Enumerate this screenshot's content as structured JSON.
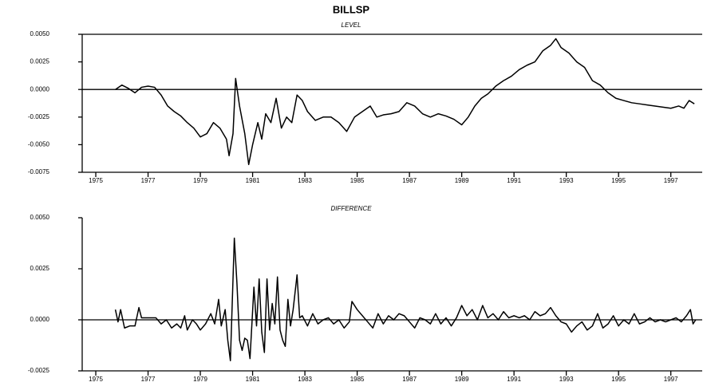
{
  "title": "BILLSP",
  "chart_data": [
    {
      "type": "line",
      "title": "LEVEL",
      "x": [
        1975.75,
        1976.0,
        1976.25,
        1976.5,
        1976.75,
        1977.0,
        1977.25,
        1977.5,
        1977.75,
        1978.0,
        1978.25,
        1978.5,
        1978.75,
        1979.0,
        1979.25,
        1979.5,
        1979.75,
        1980.0,
        1980.1,
        1980.25,
        1980.35,
        1980.5,
        1980.7,
        1980.85,
        1981.0,
        1981.2,
        1981.35,
        1981.5,
        1981.7,
        1981.9,
        1982.1,
        1982.3,
        1982.5,
        1982.7,
        1982.9,
        1983.1,
        1983.4,
        1983.7,
        1984.0,
        1984.3,
        1984.6,
        1984.9,
        1985.2,
        1985.5,
        1985.75,
        1986.0,
        1986.3,
        1986.6,
        1986.9,
        1987.2,
        1987.5,
        1987.8,
        1988.1,
        1988.4,
        1988.7,
        1989.0,
        1989.25,
        1989.5,
        1989.75,
        1990.0,
        1990.3,
        1990.6,
        1990.9,
        1991.2,
        1991.5,
        1991.8,
        1992.1,
        1992.4,
        1992.6,
        1992.8,
        1993.1,
        1993.4,
        1993.7,
        1994.0,
        1994.3,
        1994.6,
        1994.9,
        1995.2,
        1995.5,
        1995.8,
        1996.1,
        1996.4,
        1996.7,
        1997.0,
        1997.3,
        1997.5,
        1997.7,
        1997.9
      ],
      "values": [
        0,
        0.0004,
        0.0001,
        -0.0003,
        0.0002,
        0.0003,
        0.0002,
        -0.0005,
        -0.0015,
        -0.002,
        -0.0024,
        -0.003,
        -0.0035,
        -0.0043,
        -0.004,
        -0.003,
        -0.0035,
        -0.0045,
        -0.006,
        -0.004,
        0.001,
        -0.0015,
        -0.004,
        -0.0068,
        -0.005,
        -0.003,
        -0.0045,
        -0.0022,
        -0.003,
        -0.0008,
        -0.0035,
        -0.0025,
        -0.003,
        -0.0005,
        -0.001,
        -0.002,
        -0.0028,
        -0.0025,
        -0.0025,
        -0.003,
        -0.0038,
        -0.0025,
        -0.002,
        -0.0015,
        -0.0025,
        -0.0023,
        -0.0022,
        -0.002,
        -0.0012,
        -0.0015,
        -0.0022,
        -0.0025,
        -0.0022,
        -0.0024,
        -0.0027,
        -0.0032,
        -0.0025,
        -0.0015,
        -0.0008,
        -0.0004,
        0.0003,
        0.0008,
        0.0012,
        0.0018,
        0.0022,
        0.0025,
        0.0035,
        0.004,
        0.0046,
        0.0038,
        0.0033,
        0.0025,
        0.002,
        0.0008,
        0.0004,
        -0.0003,
        -0.0008,
        -0.001,
        -0.0012,
        -0.0013,
        -0.0014,
        -0.0015,
        -0.0016,
        -0.0017,
        -0.0015,
        -0.0017,
        -0.001,
        -0.0013
      ],
      "color": "#000000",
      "xlim": [
        1974.48,
        1998.2
      ],
      "xticks": [
        1975,
        1977,
        1979,
        1981,
        1983,
        1985,
        1987,
        1989,
        1991,
        1993,
        1995,
        1997
      ],
      "ylim": [
        -0.0075,
        0.005
      ],
      "yticks": [
        {
          "value": 0.005,
          "label": "0.0050"
        },
        {
          "value": 0.0025,
          "label": "0.0025"
        },
        {
          "value": 0,
          "label": "0.0000"
        },
        {
          "value": -0.0025,
          "label": "-0.0025"
        },
        {
          "value": -0.005,
          "label": "-0.0050"
        },
        {
          "value": -0.0075,
          "label": "-0.0075"
        }
      ]
    },
    {
      "type": "line",
      "title": "DIFFERENCE",
      "x": [
        1975.75,
        1975.85,
        1975.95,
        1976.1,
        1976.3,
        1976.5,
        1976.65,
        1976.75,
        1977.0,
        1977.3,
        1977.5,
        1977.7,
        1977.9,
        1978.1,
        1978.25,
        1978.4,
        1978.5,
        1978.7,
        1978.85,
        1979.0,
        1979.2,
        1979.4,
        1979.55,
        1979.7,
        1979.8,
        1979.95,
        1980.05,
        1980.15,
        1980.3,
        1980.4,
        1980.5,
        1980.6,
        1980.7,
        1980.8,
        1980.9,
        1981.05,
        1981.15,
        1981.25,
        1981.35,
        1981.45,
        1981.55,
        1981.65,
        1981.75,
        1981.85,
        1981.95,
        1982.05,
        1982.15,
        1982.25,
        1982.35,
        1982.45,
        1982.55,
        1982.7,
        1982.8,
        1982.9,
        1983.1,
        1983.3,
        1983.5,
        1983.7,
        1983.9,
        1984.1,
        1984.3,
        1984.5,
        1984.7,
        1984.8,
        1985.0,
        1985.2,
        1985.4,
        1985.6,
        1985.8,
        1986.0,
        1986.2,
        1986.4,
        1986.6,
        1986.8,
        1987.0,
        1987.2,
        1987.4,
        1987.6,
        1987.8,
        1988.0,
        1988.2,
        1988.4,
        1988.6,
        1988.8,
        1989.0,
        1989.2,
        1989.4,
        1989.6,
        1989.8,
        1990.0,
        1990.2,
        1990.4,
        1990.6,
        1990.8,
        1991.0,
        1991.2,
        1991.4,
        1991.6,
        1991.8,
        1992.0,
        1992.2,
        1992.4,
        1992.6,
        1992.8,
        1993.0,
        1993.2,
        1993.4,
        1993.6,
        1993.8,
        1994.0,
        1994.2,
        1994.4,
        1994.6,
        1994.8,
        1995.0,
        1995.2,
        1995.4,
        1995.6,
        1995.8,
        1996.0,
        1996.2,
        1996.4,
        1996.6,
        1996.8,
        1997.0,
        1997.2,
        1997.4,
        1997.6,
        1997.75,
        1997.85,
        1997.95
      ],
      "values": [
        0.0005,
        -0.0001,
        0.0005,
        -0.0004,
        -0.0003,
        -0.0003,
        0.0006,
        0.0001,
        0.0001,
        0.0001,
        -0.0002,
        0,
        -0.0004,
        -0.0002,
        -0.0004,
        0.0002,
        -0.0005,
        0,
        -0.0002,
        -0.0005,
        -0.0002,
        0.0003,
        -0.0002,
        0.001,
        -0.0003,
        0.0005,
        -0.001,
        -0.002,
        0.004,
        0.0018,
        -0.001,
        -0.0015,
        -0.0009,
        -0.001,
        -0.0019,
        0.0016,
        -0.0003,
        0.002,
        -0.0006,
        -0.0016,
        0.002,
        -0.0005,
        0.0008,
        -0.0002,
        0.0021,
        -0.0005,
        -0.001,
        -0.0013,
        0.001,
        -0.0003,
        0.0005,
        0.0022,
        0.0001,
        0.0002,
        -0.0003,
        0.0003,
        -0.0002,
        0,
        0.0001,
        -0.0002,
        0,
        -0.0004,
        -0.0001,
        0.0009,
        0.0005,
        0.0002,
        -0.0001,
        -0.0004,
        0.0003,
        -0.0002,
        0.0002,
        0,
        0.0003,
        0.0002,
        -0.0001,
        -0.0004,
        0.0001,
        0,
        -0.0002,
        0.0003,
        -0.0002,
        0.0001,
        -0.0003,
        0.0001,
        0.0007,
        0.0002,
        0.0005,
        0,
        0.0007,
        0.0001,
        0.0003,
        0,
        0.0004,
        0.0001,
        0.0002,
        0.0001,
        0.0002,
        0,
        0.0004,
        0.0002,
        0.0003,
        0.0006,
        0.0002,
        -0.0001,
        -0.0002,
        -0.0006,
        -0.0003,
        -0.0001,
        -0.0005,
        -0.0003,
        0.0003,
        -0.0004,
        -0.0002,
        0.0002,
        -0.0003,
        0,
        -0.0002,
        0.0003,
        -0.0002,
        -0.0001,
        0.0001,
        -0.0001,
        0,
        -0.0001,
        0,
        0.0001,
        -0.0001,
        0.0002,
        0.0005,
        -0.0002,
        0
      ],
      "color": "#000000",
      "xlim": [
        1974.48,
        1998.2
      ],
      "xticks": [
        1975,
        1977,
        1979,
        1981,
        1983,
        1985,
        1987,
        1989,
        1991,
        1993,
        1995,
        1997
      ],
      "ylim": [
        -0.0025,
        0.005
      ],
      "yticks": [
        {
          "value": 0.005,
          "label": "0.0050"
        },
        {
          "value": 0.0025,
          "label": "0.0025"
        },
        {
          "value": 0,
          "label": "0.0000"
        },
        {
          "value": -0.0025,
          "label": "-0.0025"
        }
      ]
    }
  ]
}
